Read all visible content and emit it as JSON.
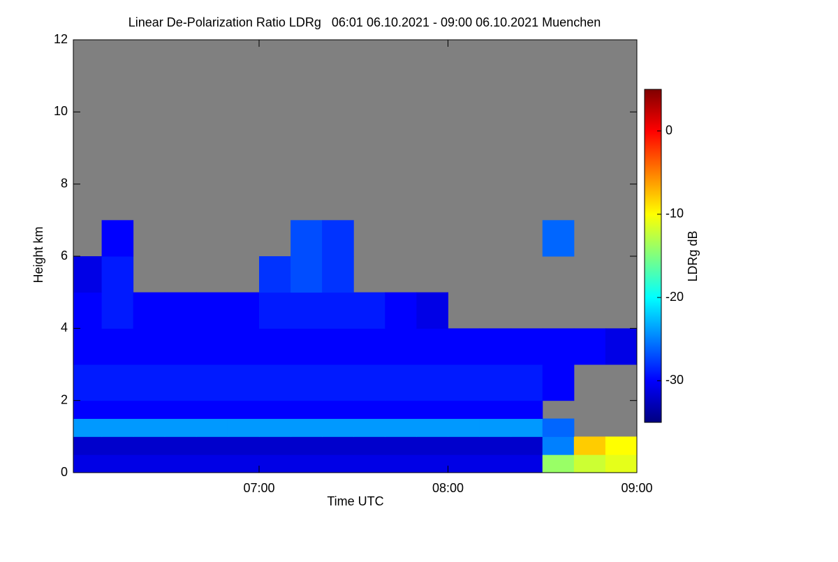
{
  "chart_data": {
    "type": "heatmap",
    "title": "Linear De-Polarization Ratio LDRg   06:01 06.10.2021 - 09:00 06.10.2021 Muenchen",
    "x_label": "Time UTC",
    "y_label": "Height km",
    "colorbar_label": "LDRg dB",
    "xlim": [
      6.0167,
      9
    ],
    "xticks": [
      {
        "value": 7,
        "label": "07:00"
      },
      {
        "value": 8,
        "label": "08:00"
      },
      {
        "value": 9,
        "label": "09:00"
      }
    ],
    "ylim": [
      0,
      12
    ],
    "yticks": [
      0,
      2,
      4,
      6,
      8,
      10,
      12
    ],
    "zlim": [
      -35,
      5
    ],
    "zticks": [
      0,
      -10,
      -20,
      -30
    ],
    "no_data_color": "#808080",
    "x_bins": [
      6.0167,
      6.1667,
      6.3333,
      6.5,
      6.6667,
      6.8333,
      7,
      7.1667,
      7.3333,
      7.5,
      7.6667,
      7.8333,
      8,
      8.1667,
      8.3333,
      8.5,
      8.6667,
      8.8333,
      9
    ],
    "y_bins": [
      0,
      0.5,
      1,
      1.5,
      2,
      3,
      4,
      5,
      6,
      7
    ],
    "z": [
      [
        -31,
        -31,
        -31,
        -31,
        -31,
        -31,
        -31,
        -31,
        -31,
        -31,
        -31,
        -31,
        -31,
        -31,
        -31,
        -14,
        -12,
        -11
      ],
      [
        -32,
        -32,
        -32,
        -32,
        -32,
        -32,
        -32,
        -32,
        -32,
        -32,
        -32,
        -32,
        -32,
        -32,
        -32,
        -25,
        -8,
        -10
      ],
      [
        -24,
        -24,
        -24,
        -24,
        -24,
        -24,
        -24,
        -24,
        -24,
        -24,
        -24,
        -24,
        -24,
        -24,
        -24,
        -26,
        null,
        null
      ],
      [
        -30,
        -30,
        -30,
        -30,
        -30,
        -30,
        -30,
        -30,
        -30,
        -30,
        -30,
        -30,
        -30,
        -30,
        -30,
        null,
        null,
        null
      ],
      [
        -29,
        -29,
        -29,
        -29,
        -29,
        -29,
        -29,
        -29,
        -29,
        -29,
        -29,
        -29,
        -29,
        -29,
        -29,
        -30,
        null,
        null
      ],
      [
        -30,
        -30,
        -30,
        -30,
        -30,
        -30,
        -30,
        -30,
        -30,
        -30,
        -30,
        -30,
        -30,
        -30,
        -30,
        -30,
        -30,
        -31
      ],
      [
        -30,
        -29,
        -30,
        -30,
        -30,
        -30,
        -29,
        -29,
        -29,
        -29,
        -30,
        -31,
        null,
        null,
        null,
        null,
        null,
        null
      ],
      [
        -31,
        -29,
        null,
        null,
        null,
        null,
        -28,
        -27,
        -28,
        null,
        null,
        null,
        null,
        null,
        null,
        null,
        null,
        null
      ],
      [
        null,
        -30,
        null,
        null,
        null,
        null,
        null,
        -27,
        -28,
        null,
        null,
        null,
        null,
        null,
        null,
        -26,
        null,
        null
      ]
    ]
  }
}
